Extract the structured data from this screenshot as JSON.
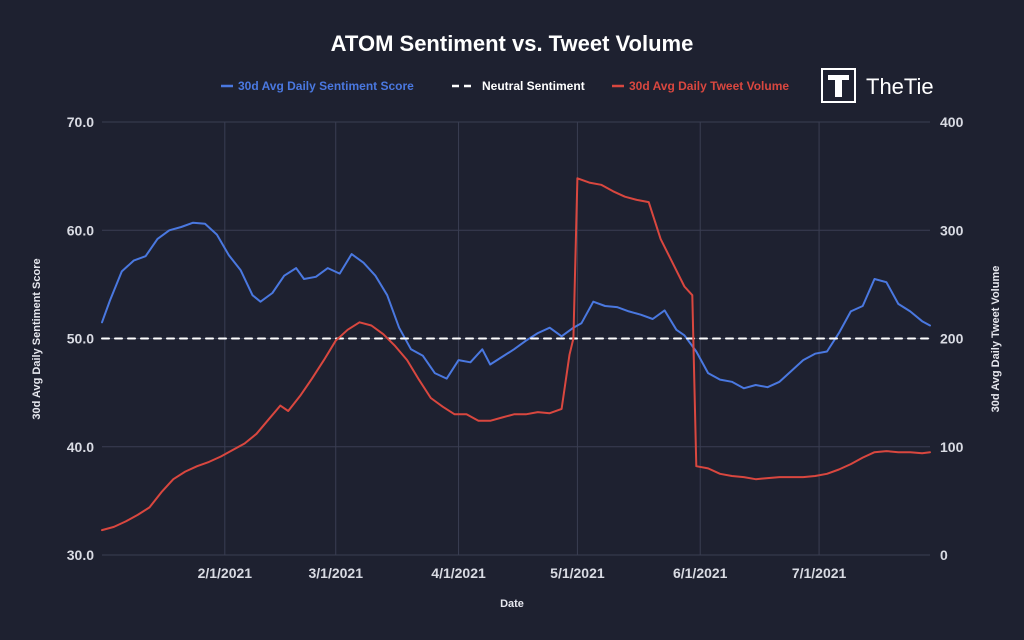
{
  "colors": {
    "background": "#1e2130",
    "grid": "#3a3e52",
    "sentiment": "#4a78e0",
    "neutral": "#ffffff",
    "volume": "#d9473f",
    "text": "#ffffff"
  },
  "brand": {
    "name": "TheTie",
    "icon": "thetie-logo-icon"
  },
  "chart_data": {
    "type": "line",
    "title": "ATOM Sentiment vs. Tweet Volume",
    "xlabel": "Date",
    "ylabel_left": "30d Avg Daily Sentiment Score",
    "ylabel_right": "30d Avg Daily Tweet Volume",
    "ylim_left": [
      30,
      70
    ],
    "ylim_right": [
      0,
      400
    ],
    "xlim": [
      "2021-01-01",
      "2021-07-29"
    ],
    "grid": true,
    "legend_position": "top-center",
    "x_ticks": [
      "2021-02-01",
      "2021-03-01",
      "2021-04-01",
      "2021-05-01",
      "2021-06-01",
      "2021-07-01"
    ],
    "x_tick_labels": [
      "2/1/2021",
      "3/1/2021",
      "4/1/2021",
      "5/1/2021",
      "6/1/2021",
      "7/1/2021"
    ],
    "y_left_ticks": [
      "30.0",
      "40.0",
      "50.0",
      "60.0",
      "70.0"
    ],
    "y_right_ticks": [
      "0",
      "100",
      "200",
      "300",
      "400"
    ],
    "series": [
      {
        "name": "30d Avg Daily Sentiment Score",
        "axis": "left",
        "style": "solid",
        "points": [
          [
            "2021-01-01",
            51.5
          ],
          [
            "2021-01-03",
            53.5
          ],
          [
            "2021-01-06",
            56.2
          ],
          [
            "2021-01-09",
            57.2
          ],
          [
            "2021-01-12",
            57.6
          ],
          [
            "2021-01-15",
            59.2
          ],
          [
            "2021-01-18",
            60.0
          ],
          [
            "2021-01-21",
            60.3
          ],
          [
            "2021-01-24",
            60.7
          ],
          [
            "2021-01-27",
            60.6
          ],
          [
            "2021-01-30",
            59.6
          ],
          [
            "2021-02-02",
            57.7
          ],
          [
            "2021-02-05",
            56.3
          ],
          [
            "2021-02-08",
            54.0
          ],
          [
            "2021-02-10",
            53.4
          ],
          [
            "2021-02-13",
            54.2
          ],
          [
            "2021-02-16",
            55.8
          ],
          [
            "2021-02-19",
            56.5
          ],
          [
            "2021-02-21",
            55.5
          ],
          [
            "2021-02-24",
            55.7
          ],
          [
            "2021-02-27",
            56.5
          ],
          [
            "2021-03-02",
            56.0
          ],
          [
            "2021-03-05",
            57.8
          ],
          [
            "2021-03-08",
            57.0
          ],
          [
            "2021-03-11",
            55.8
          ],
          [
            "2021-03-14",
            54.0
          ],
          [
            "2021-03-17",
            51.0
          ],
          [
            "2021-03-20",
            49.0
          ],
          [
            "2021-03-23",
            48.4
          ],
          [
            "2021-03-26",
            46.8
          ],
          [
            "2021-03-29",
            46.3
          ],
          [
            "2021-04-01",
            48.0
          ],
          [
            "2021-04-04",
            47.8
          ],
          [
            "2021-04-07",
            49.0
          ],
          [
            "2021-04-09",
            47.6
          ],
          [
            "2021-04-12",
            48.3
          ],
          [
            "2021-04-15",
            49.0
          ],
          [
            "2021-04-18",
            49.8
          ],
          [
            "2021-04-21",
            50.5
          ],
          [
            "2021-04-24",
            51.0
          ],
          [
            "2021-04-27",
            50.2
          ],
          [
            "2021-04-30",
            51.0
          ],
          [
            "2021-05-02",
            51.4
          ],
          [
            "2021-05-05",
            53.4
          ],
          [
            "2021-05-08",
            53.0
          ],
          [
            "2021-05-11",
            52.9
          ],
          [
            "2021-05-14",
            52.5
          ],
          [
            "2021-05-17",
            52.2
          ],
          [
            "2021-05-20",
            51.8
          ],
          [
            "2021-05-23",
            52.6
          ],
          [
            "2021-05-26",
            50.8
          ],
          [
            "2021-05-28",
            50.3
          ],
          [
            "2021-05-31",
            48.8
          ],
          [
            "2021-06-03",
            46.8
          ],
          [
            "2021-06-06",
            46.2
          ],
          [
            "2021-06-09",
            46.0
          ],
          [
            "2021-06-12",
            45.4
          ],
          [
            "2021-06-15",
            45.7
          ],
          [
            "2021-06-18",
            45.5
          ],
          [
            "2021-06-21",
            46.0
          ],
          [
            "2021-06-24",
            47.0
          ],
          [
            "2021-06-27",
            48.0
          ],
          [
            "2021-06-30",
            48.6
          ],
          [
            "2021-07-03",
            48.8
          ],
          [
            "2021-07-06",
            50.5
          ],
          [
            "2021-07-09",
            52.5
          ],
          [
            "2021-07-12",
            53.0
          ],
          [
            "2021-07-15",
            55.5
          ],
          [
            "2021-07-18",
            55.2
          ],
          [
            "2021-07-21",
            53.2
          ],
          [
            "2021-07-24",
            52.5
          ],
          [
            "2021-07-27",
            51.6
          ],
          [
            "2021-07-29",
            51.2
          ]
        ]
      },
      {
        "name": "Neutral Sentiment",
        "axis": "left",
        "style": "dashed",
        "points": [
          [
            "2021-01-01",
            50.0
          ],
          [
            "2021-07-29",
            50.0
          ]
        ]
      },
      {
        "name": "30d Avg Daily Tweet Volume",
        "axis": "right",
        "style": "solid",
        "points": [
          [
            "2021-01-01",
            23
          ],
          [
            "2021-01-04",
            26
          ],
          [
            "2021-01-07",
            31
          ],
          [
            "2021-01-10",
            37
          ],
          [
            "2021-01-13",
            44
          ],
          [
            "2021-01-16",
            58
          ],
          [
            "2021-01-19",
            70
          ],
          [
            "2021-01-22",
            77
          ],
          [
            "2021-01-25",
            82
          ],
          [
            "2021-01-28",
            86
          ],
          [
            "2021-01-31",
            91
          ],
          [
            "2021-02-03",
            97
          ],
          [
            "2021-02-06",
            103
          ],
          [
            "2021-02-09",
            112
          ],
          [
            "2021-02-12",
            125
          ],
          [
            "2021-02-15",
            138
          ],
          [
            "2021-02-17",
            133
          ],
          [
            "2021-02-20",
            147
          ],
          [
            "2021-02-23",
            163
          ],
          [
            "2021-02-26",
            180
          ],
          [
            "2021-03-01",
            198
          ],
          [
            "2021-03-04",
            208
          ],
          [
            "2021-03-07",
            215
          ],
          [
            "2021-03-10",
            212
          ],
          [
            "2021-03-13",
            204
          ],
          [
            "2021-03-16",
            193
          ],
          [
            "2021-03-19",
            180
          ],
          [
            "2021-03-22",
            162
          ],
          [
            "2021-03-25",
            145
          ],
          [
            "2021-03-28",
            137
          ],
          [
            "2021-03-31",
            130
          ],
          [
            "2021-04-03",
            130
          ],
          [
            "2021-04-06",
            124
          ],
          [
            "2021-04-09",
            124
          ],
          [
            "2021-04-12",
            127
          ],
          [
            "2021-04-15",
            130
          ],
          [
            "2021-04-18",
            130
          ],
          [
            "2021-04-21",
            132
          ],
          [
            "2021-04-24",
            131
          ],
          [
            "2021-04-27",
            135
          ],
          [
            "2021-04-29",
            185
          ],
          [
            "2021-04-30",
            200
          ],
          [
            "2021-05-01",
            348
          ],
          [
            "2021-05-04",
            344
          ],
          [
            "2021-05-07",
            342
          ],
          [
            "2021-05-10",
            336
          ],
          [
            "2021-05-13",
            331
          ],
          [
            "2021-05-16",
            328
          ],
          [
            "2021-05-19",
            326
          ],
          [
            "2021-05-22",
            292
          ],
          [
            "2021-05-25",
            270
          ],
          [
            "2021-05-28",
            248
          ],
          [
            "2021-05-30",
            240
          ],
          [
            "2021-05-31",
            82
          ],
          [
            "2021-06-03",
            80
          ],
          [
            "2021-06-06",
            75
          ],
          [
            "2021-06-09",
            73
          ],
          [
            "2021-06-12",
            72
          ],
          [
            "2021-06-15",
            70
          ],
          [
            "2021-06-18",
            71
          ],
          [
            "2021-06-21",
            72
          ],
          [
            "2021-06-24",
            72
          ],
          [
            "2021-06-27",
            72
          ],
          [
            "2021-06-30",
            73
          ],
          [
            "2021-07-03",
            75
          ],
          [
            "2021-07-06",
            79
          ],
          [
            "2021-07-09",
            84
          ],
          [
            "2021-07-12",
            90
          ],
          [
            "2021-07-15",
            95
          ],
          [
            "2021-07-18",
            96
          ],
          [
            "2021-07-21",
            95
          ],
          [
            "2021-07-24",
            95
          ],
          [
            "2021-07-27",
            94
          ],
          [
            "2021-07-29",
            95
          ]
        ]
      }
    ]
  }
}
